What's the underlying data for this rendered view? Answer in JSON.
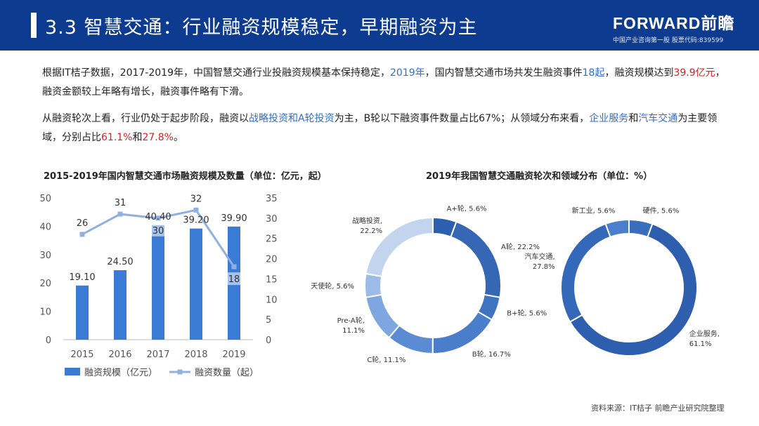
{
  "header": {
    "title": "3.3 智慧交通：行业融资规模稳定，早期融资为主",
    "logo_main": "FORWARD前瞻",
    "logo_sub": "中国产业咨询第一股  股票代码:839599"
  },
  "paragraph1": {
    "t1": "根据IT桔子数据，2017-2019年，中国智慧交通行业投融资规模基本保持稳定，",
    "h1": "2019年",
    "t2": "，国内智慧交通市场共发生融资事件",
    "h2": "18起",
    "t3": "，融资规模达到",
    "h3": "39.9亿元",
    "t4": "，融资金额较上年略有增长，融资事件略有下滑。"
  },
  "paragraph2": {
    "t1": "从融资轮次上看，行业仍处于起步阶段，融资以",
    "h1": "战略投资和A轮投资",
    "t2": "为主，B轮以下融资事件数量占比67%；从领域分布来看，",
    "h2": "企业服务",
    "t3": "和",
    "h3": "汽车交通",
    "t4": "为主要领域，分别占比",
    "h4": "61.1%",
    "t5": "和",
    "h5": "27.8%",
    "t6": "。"
  },
  "colors": {
    "header_bg": "#0d3b8f",
    "bar": "#3a7bd5",
    "line": "#8fb0e0",
    "highlight_blue": "#2e6fd1",
    "highlight_red": "#d82020"
  },
  "chart_data": [
    {
      "type": "bar",
      "title": "2015-2019年国内智慧交通市场融资规模及数量（单位：亿元，起）",
      "categories": [
        "2015",
        "2016",
        "2017",
        "2018",
        "2019"
      ],
      "series": [
        {
          "name": "融资规模（亿元）",
          "type": "bar",
          "axis": "left",
          "values": [
            19.1,
            24.5,
            40.4,
            39.2,
            39.9
          ],
          "labels": [
            "19.10",
            "24.50",
            "40.40",
            "39.20",
            "39.90"
          ]
        },
        {
          "name": "融资数量（起）",
          "type": "line",
          "axis": "right",
          "values": [
            26,
            31,
            30,
            32,
            18
          ],
          "labels": [
            "26",
            "31",
            "30",
            "32",
            "18"
          ]
        }
      ],
      "ylim_left": [
        0,
        50
      ],
      "yticks_left": [
        "0",
        "10",
        "20",
        "30",
        "40",
        "50"
      ],
      "ylim_right": [
        0,
        35
      ],
      "yticks_right": [
        "0",
        "5",
        "10",
        "15",
        "20",
        "25",
        "30",
        "35"
      ],
      "grid": false,
      "legend_position": "bottom"
    },
    {
      "type": "pie",
      "style": "donut",
      "title": "2019年我国智慧交通融资轮次和领域分布（单位：%）",
      "slices": [
        {
          "name": "A+轮",
          "value": 5.6,
          "label": "A+轮, 5.6%",
          "color": "#2c5fad"
        },
        {
          "name": "A轮",
          "value": 22.2,
          "label": "A轮, 22.2%",
          "color": "#3567b5"
        },
        {
          "name": "B+轮",
          "value": 5.6,
          "label": "B+轮, 5.6%",
          "color": "#3f72c0"
        },
        {
          "name": "B轮",
          "value": 16.7,
          "label": "B轮, 16.7%",
          "color": "#4a7dca"
        },
        {
          "name": "C轮",
          "value": 11.1,
          "label": "C轮, 11.1%",
          "color": "#5b8cd3"
        },
        {
          "name": "Pre-A轮",
          "value": 11.1,
          "label_line1": "Pre-A轮,",
          "label_line2": "11.1%",
          "color": "#7ea6df"
        },
        {
          "name": "天使轮",
          "value": 5.6,
          "label": "天使轮, 5.6%",
          "color": "#9dbbe6"
        },
        {
          "name": "战略投资",
          "value": 22.2,
          "label_line1": "战略投资,",
          "label_line2": "22.2%",
          "color": "#c3d4ef"
        }
      ]
    },
    {
      "type": "pie",
      "style": "donut",
      "slices": [
        {
          "name": "硬件",
          "value": 5.6,
          "label": "硬件, 5.6%",
          "color": "#3a6ebd"
        },
        {
          "name": "企业服务",
          "value": 61.1,
          "label_line1": "企业服务,",
          "label_line2": "61.1%",
          "color": "#2d5fae"
        },
        {
          "name": "汽车交通",
          "value": 27.8,
          "label_line1": "汽车交通,",
          "label_line2": "27.8%",
          "color": "#3468b8"
        },
        {
          "name": "新工业",
          "value": 5.6,
          "label": "新工业, 5.6%",
          "color": "#4a7fcb"
        }
      ]
    }
  ],
  "source": "资料来源：IT桔子 前瞻产业研究院整理"
}
